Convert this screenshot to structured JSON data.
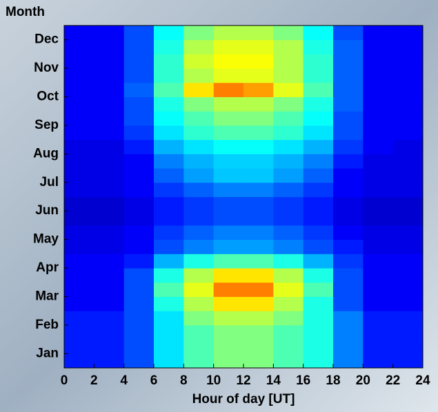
{
  "chart_data": {
    "type": "heatmap",
    "xlabel": "Hour of day [UT]",
    "ylabel": "Month",
    "xlim": [
      0,
      24
    ],
    "xticks": [
      0,
      2,
      4,
      6,
      8,
      10,
      12,
      14,
      16,
      18,
      20,
      22,
      24
    ],
    "ylim": [
      0,
      12
    ],
    "yticks": [
      {
        "value": 0.5,
        "label": "Jan"
      },
      {
        "value": 1.5,
        "label": "Feb"
      },
      {
        "value": 2.5,
        "label": "Mar"
      },
      {
        "value": 3.5,
        "label": "Apr"
      },
      {
        "value": 4.5,
        "label": "May"
      },
      {
        "value": 5.5,
        "label": "Jun"
      },
      {
        "value": 6.5,
        "label": "Jul"
      },
      {
        "value": 7.5,
        "label": "Aug"
      },
      {
        "value": 8.5,
        "label": "Sep"
      },
      {
        "value": 9.5,
        "label": "Oct"
      },
      {
        "value": 10.5,
        "label": "Nov"
      },
      {
        "value": 11.5,
        "label": "Dec"
      }
    ],
    "colormap": "jet",
    "zlim": [
      0,
      1
    ],
    "z": [
      [
        0.15,
        0.15,
        0.2,
        0.35,
        0.45,
        0.5,
        0.5,
        0.45,
        0.4,
        0.25,
        0.15,
        0.15
      ],
      [
        0.15,
        0.15,
        0.2,
        0.35,
        0.45,
        0.5,
        0.5,
        0.45,
        0.4,
        0.25,
        0.15,
        0.15
      ],
      [
        0.15,
        0.15,
        0.2,
        0.35,
        0.45,
        0.5,
        0.5,
        0.45,
        0.4,
        0.25,
        0.15,
        0.15
      ],
      [
        0.15,
        0.15,
        0.2,
        0.35,
        0.5,
        0.55,
        0.55,
        0.5,
        0.4,
        0.25,
        0.15,
        0.15
      ],
      [
        0.12,
        0.12,
        0.2,
        0.4,
        0.55,
        0.65,
        0.65,
        0.55,
        0.4,
        0.2,
        0.12,
        0.12
      ],
      [
        0.12,
        0.12,
        0.2,
        0.45,
        0.6,
        0.75,
        0.75,
        0.6,
        0.45,
        0.2,
        0.12,
        0.12
      ],
      [
        0.12,
        0.12,
        0.2,
        0.4,
        0.55,
        0.65,
        0.65,
        0.55,
        0.4,
        0.2,
        0.12,
        0.12
      ],
      [
        0.12,
        0.12,
        0.15,
        0.3,
        0.4,
        0.45,
        0.45,
        0.4,
        0.3,
        0.18,
        0.12,
        0.12
      ],
      [
        0.1,
        0.1,
        0.12,
        0.2,
        0.25,
        0.28,
        0.28,
        0.25,
        0.2,
        0.15,
        0.1,
        0.1
      ],
      [
        0.1,
        0.1,
        0.12,
        0.18,
        0.22,
        0.25,
        0.25,
        0.22,
        0.18,
        0.12,
        0.1,
        0.1
      ],
      [
        0.08,
        0.08,
        0.1,
        0.15,
        0.18,
        0.2,
        0.2,
        0.18,
        0.15,
        0.1,
        0.08,
        0.08
      ],
      [
        0.08,
        0.08,
        0.1,
        0.15,
        0.18,
        0.2,
        0.2,
        0.18,
        0.15,
        0.1,
        0.08,
        0.08
      ],
      [
        0.1,
        0.1,
        0.12,
        0.18,
        0.22,
        0.25,
        0.25,
        0.22,
        0.18,
        0.12,
        0.1,
        0.1
      ],
      [
        0.1,
        0.1,
        0.12,
        0.22,
        0.28,
        0.32,
        0.32,
        0.28,
        0.22,
        0.12,
        0.1,
        0.1
      ],
      [
        0.1,
        0.1,
        0.12,
        0.25,
        0.3,
        0.33,
        0.33,
        0.3,
        0.25,
        0.15,
        0.1,
        0.1
      ],
      [
        0.1,
        0.1,
        0.15,
        0.3,
        0.35,
        0.38,
        0.38,
        0.35,
        0.3,
        0.18,
        0.12,
        0.1
      ],
      [
        0.12,
        0.12,
        0.18,
        0.35,
        0.42,
        0.45,
        0.45,
        0.42,
        0.35,
        0.2,
        0.12,
        0.12
      ],
      [
        0.12,
        0.12,
        0.2,
        0.38,
        0.45,
        0.5,
        0.5,
        0.45,
        0.38,
        0.2,
        0.12,
        0.12
      ],
      [
        0.12,
        0.12,
        0.2,
        0.4,
        0.5,
        0.55,
        0.55,
        0.5,
        0.4,
        0.22,
        0.12,
        0.12
      ],
      [
        0.12,
        0.12,
        0.22,
        0.45,
        0.65,
        0.75,
        0.72,
        0.6,
        0.45,
        0.22,
        0.12,
        0.12
      ],
      [
        0.12,
        0.12,
        0.2,
        0.42,
        0.55,
        0.6,
        0.6,
        0.55,
        0.42,
        0.22,
        0.12,
        0.12
      ],
      [
        0.12,
        0.12,
        0.2,
        0.42,
        0.58,
        0.62,
        0.62,
        0.55,
        0.42,
        0.22,
        0.12,
        0.12
      ],
      [
        0.12,
        0.12,
        0.2,
        0.4,
        0.55,
        0.6,
        0.6,
        0.55,
        0.4,
        0.22,
        0.12,
        0.12
      ],
      [
        0.12,
        0.12,
        0.2,
        0.38,
        0.5,
        0.55,
        0.55,
        0.5,
        0.38,
        0.2,
        0.12,
        0.12
      ]
    ]
  }
}
